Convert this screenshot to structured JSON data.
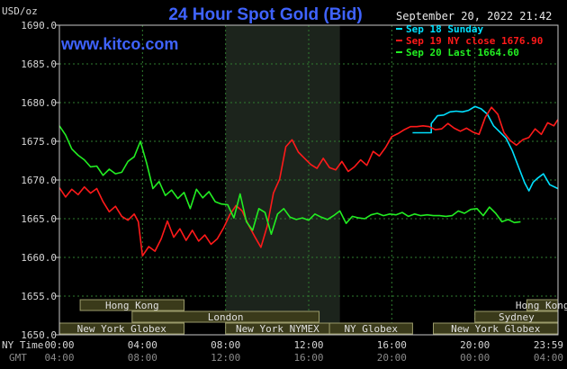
{
  "header": {
    "title": "24 Hour Spot Gold (Bid)",
    "site": "www.kitco.com",
    "timestamp": "September 20, 2022 21:42",
    "unit": "USD/oz"
  },
  "colors": {
    "background": "#000000",
    "frame": "#c8c8c8",
    "grid": "#2f7d2f",
    "shade": "#1c241c",
    "market_box": "#3a3a1a",
    "market_border": "#9a9a6a"
  },
  "axis_footer": {
    "ny_time_label": "NY Time",
    "gmt_label": "GMT",
    "gmt_ticks": [
      "04:00",
      "08:00",
      "12:00",
      "16:00",
      "20:00",
      "00:00",
      "04:00"
    ]
  },
  "markets": [
    {
      "name": "Hong Kong",
      "row": 1,
      "start": 1.0,
      "end": 6.0
    },
    {
      "name": "Hong Kong",
      "row": 1,
      "start": 22.5,
      "end": 24.0
    },
    {
      "name": "London",
      "row": 2,
      "start": 3.5,
      "end": 12.5
    },
    {
      "name": "Sydney",
      "row": 2,
      "start": 20.0,
      "end": 24.0
    },
    {
      "name": "New York Globex",
      "row": 3,
      "start": 0.0,
      "end": 6.0
    },
    {
      "name": "New York NYMEX",
      "row": 3,
      "start": 8.0,
      "end": 13.0
    },
    {
      "name": "NY Globex",
      "row": 3,
      "start": 13.0,
      "end": 17.0
    },
    {
      "name": "New York Globex",
      "row": 3,
      "start": 18.0,
      "end": 24.0
    }
  ],
  "chart_data": {
    "type": "line",
    "title": "24 Hour Spot Gold (Bid)",
    "ylabel": "USD/oz",
    "xlabel": "NY Time",
    "ylim": [
      1650,
      1690
    ],
    "yticks": [
      1650.0,
      1655.0,
      1660.0,
      1665.0,
      1670.0,
      1675.0,
      1680.0,
      1685.0,
      1690.0
    ],
    "xlim": [
      0,
      24
    ],
    "xticks": [
      {
        "value": 0,
        "label": "00:00"
      },
      {
        "value": 4,
        "label": "04:00"
      },
      {
        "value": 8,
        "label": "08:00"
      },
      {
        "value": 12,
        "label": "12:00"
      },
      {
        "value": 16,
        "label": "16:00"
      },
      {
        "value": 20,
        "label": "20:00"
      },
      {
        "value": 24,
        "label": "23:59"
      }
    ],
    "shaded_region": [
      8.0,
      13.5
    ],
    "grid": true,
    "legend_position": "top-right",
    "series": [
      {
        "name": "Sep 18 Sunday",
        "color": "#00e0ff",
        "x": [
          17.0,
          17.9,
          17.9,
          18.2,
          18.5,
          18.8,
          19.1,
          19.4,
          19.7,
          20.0,
          20.3,
          20.6,
          20.9,
          21.2,
          21.5,
          21.8,
          22.1,
          22.4,
          22.6,
          22.8,
          23.0,
          23.3,
          23.6,
          23.99
        ],
        "y": [
          1676.1,
          1676.1,
          1677.3,
          1678.3,
          1678.4,
          1678.8,
          1678.9,
          1678.8,
          1679.0,
          1679.5,
          1679.2,
          1678.5,
          1677.0,
          1676.2,
          1675.4,
          1673.8,
          1671.7,
          1669.6,
          1668.6,
          1669.7,
          1670.2,
          1670.8,
          1669.4,
          1668.9
        ]
      },
      {
        "name": "Sep 19 NY close 1676.90",
        "color": "#ff1a1a",
        "x": [
          0.0,
          0.3,
          0.6,
          0.9,
          1.2,
          1.5,
          1.8,
          2.1,
          2.4,
          2.7,
          3.0,
          3.3,
          3.6,
          3.8,
          4.0,
          4.3,
          4.6,
          4.9,
          5.2,
          5.5,
          5.8,
          6.1,
          6.4,
          6.7,
          7.0,
          7.3,
          7.6,
          7.9,
          8.2,
          8.5,
          8.8,
          9.1,
          9.4,
          9.7,
          10.0,
          10.3,
          10.6,
          10.9,
          11.2,
          11.5,
          11.8,
          12.1,
          12.4,
          12.7,
          13.0,
          13.3,
          13.6,
          13.9,
          14.2,
          14.5,
          14.8,
          15.1,
          15.4,
          15.7,
          16.0,
          16.3,
          16.6,
          16.9,
          17.2,
          17.5,
          17.8,
          18.1,
          18.4,
          18.7,
          19.0,
          19.3,
          19.6,
          19.9,
          20.2,
          20.5,
          20.8,
          21.1,
          21.4,
          21.7,
          22.0,
          22.3,
          22.6,
          22.9,
          23.2,
          23.5,
          23.8,
          23.99
        ],
        "y": [
          1669.0,
          1667.8,
          1668.8,
          1668.1,
          1669.1,
          1668.3,
          1668.9,
          1667.2,
          1665.9,
          1666.6,
          1665.3,
          1664.8,
          1665.6,
          1664.6,
          1660.2,
          1661.4,
          1660.8,
          1662.4,
          1664.7,
          1662.6,
          1663.7,
          1662.2,
          1663.5,
          1662.1,
          1662.9,
          1661.7,
          1662.4,
          1663.8,
          1665.5,
          1666.7,
          1666.0,
          1664.2,
          1662.7,
          1661.3,
          1664.0,
          1668.3,
          1670.1,
          1674.3,
          1675.2,
          1673.6,
          1672.8,
          1672.0,
          1671.5,
          1672.8,
          1671.6,
          1671.3,
          1672.4,
          1671.1,
          1671.7,
          1672.6,
          1671.9,
          1673.7,
          1673.1,
          1674.2,
          1675.6,
          1676.0,
          1676.5,
          1676.9,
          1676.9,
          1677.0,
          1676.9,
          1676.5,
          1676.6,
          1677.3,
          1676.7,
          1676.3,
          1676.7,
          1676.2,
          1675.9,
          1678.1,
          1679.4,
          1678.5,
          1676.1,
          1675.1,
          1674.5,
          1675.2,
          1675.5,
          1676.6,
          1675.9,
          1677.4,
          1677.0,
          1677.8
        ]
      },
      {
        "name": "Sep 20 Last 1664.60",
        "color": "#22ee22",
        "x": [
          0.0,
          0.3,
          0.6,
          0.9,
          1.2,
          1.5,
          1.8,
          2.1,
          2.4,
          2.7,
          3.0,
          3.3,
          3.6,
          3.9,
          4.2,
          4.5,
          4.8,
          5.1,
          5.4,
          5.7,
          6.0,
          6.3,
          6.6,
          6.9,
          7.2,
          7.5,
          7.8,
          8.1,
          8.4,
          8.7,
          9.0,
          9.3,
          9.6,
          9.9,
          10.2,
          10.5,
          10.8,
          11.1,
          11.4,
          11.7,
          12.0,
          12.3,
          12.6,
          12.9,
          13.2,
          13.5,
          13.8,
          14.1,
          14.4,
          14.7,
          15.0,
          15.3,
          15.6,
          15.9,
          16.2,
          16.5,
          16.8,
          17.1,
          17.4,
          17.7,
          18.0,
          18.3,
          18.6,
          18.9,
          19.2,
          19.5,
          19.8,
          20.1,
          20.4,
          20.7,
          21.0,
          21.3,
          21.6,
          21.9,
          22.2
        ],
        "y": [
          1677.0,
          1675.8,
          1674.0,
          1673.2,
          1672.6,
          1671.7,
          1671.8,
          1670.6,
          1671.4,
          1670.8,
          1671.0,
          1672.4,
          1673.0,
          1675.0,
          1672.2,
          1668.9,
          1669.8,
          1668.0,
          1668.7,
          1667.6,
          1668.4,
          1666.3,
          1668.8,
          1667.7,
          1668.5,
          1667.2,
          1666.9,
          1666.8,
          1665.1,
          1668.2,
          1664.6,
          1663.5,
          1666.3,
          1665.8,
          1663.0,
          1665.6,
          1666.3,
          1665.2,
          1664.9,
          1665.1,
          1664.8,
          1665.6,
          1665.2,
          1664.9,
          1665.4,
          1666.0,
          1664.4,
          1665.3,
          1665.1,
          1665.0,
          1665.5,
          1665.7,
          1665.4,
          1665.6,
          1665.5,
          1665.8,
          1665.3,
          1665.6,
          1665.4,
          1665.5,
          1665.4,
          1665.4,
          1665.3,
          1665.4,
          1666.0,
          1665.7,
          1666.2,
          1666.3,
          1665.4,
          1666.5,
          1665.7,
          1664.6,
          1664.9,
          1664.5,
          1664.6
        ]
      }
    ]
  }
}
